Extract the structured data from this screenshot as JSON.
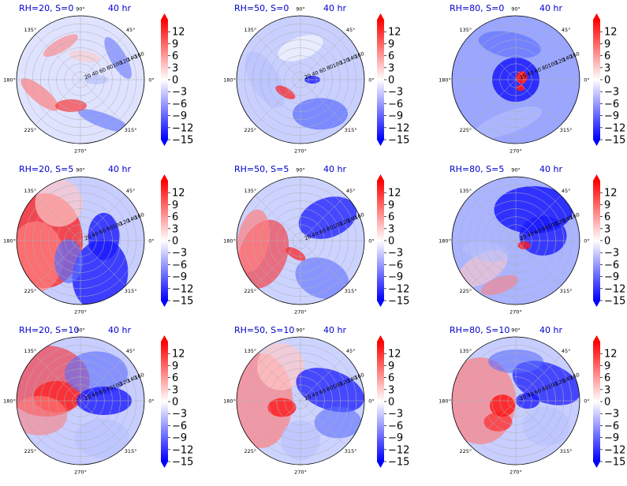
{
  "figure": {
    "time_label": "40 hr",
    "angle_tick_labels": [
      "0°",
      "45°",
      "90°",
      "135°",
      "180°",
      "225°",
      "270°",
      "315°"
    ],
    "radial_tick_labels": [
      "20",
      "40",
      "60",
      "80",
      "100",
      "120",
      "140",
      "160"
    ],
    "colorbar": {
      "tick_labels": [
        "12",
        "9",
        "6",
        "3",
        "0",
        "−3",
        "−6",
        "−9",
        "−12",
        "−15"
      ],
      "range": [
        -15,
        15
      ],
      "colormap": {
        "low": "#0000ff",
        "mid": "#ffffff",
        "high": "#ff0000"
      }
    },
    "title_color": "#0000cc"
  },
  "chart_data": [
    {
      "type": "heatmap",
      "projection": "polar",
      "title": "RH=20, S=0",
      "time": "40 hr",
      "rlim": [
        0,
        160
      ],
      "clim": [
        -15,
        15
      ]
    },
    {
      "type": "heatmap",
      "projection": "polar",
      "title": "RH=50, S=0",
      "time": "40 hr",
      "rlim": [
        0,
        160
      ],
      "clim": [
        -15,
        15
      ]
    },
    {
      "type": "heatmap",
      "projection": "polar",
      "title": "RH=80, S=0",
      "time": "40 hr",
      "rlim": [
        0,
        160
      ],
      "clim": [
        -15,
        15
      ]
    },
    {
      "type": "heatmap",
      "projection": "polar",
      "title": "RH=20, S=5",
      "time": "40 hr",
      "rlim": [
        0,
        160
      ],
      "clim": [
        -15,
        15
      ]
    },
    {
      "type": "heatmap",
      "projection": "polar",
      "title": "RH=50, S=5",
      "time": "40 hr",
      "rlim": [
        0,
        160
      ],
      "clim": [
        -15,
        15
      ]
    },
    {
      "type": "heatmap",
      "projection": "polar",
      "title": "RH=80, S=5",
      "time": "40 hr",
      "rlim": [
        0,
        160
      ],
      "clim": [
        -15,
        15
      ]
    },
    {
      "type": "heatmap",
      "projection": "polar",
      "title": "RH=20, S=10",
      "time": "40 hr",
      "rlim": [
        0,
        160
      ],
      "clim": [
        -15,
        15
      ]
    },
    {
      "type": "heatmap",
      "projection": "polar",
      "title": "RH=50, S=10",
      "time": "40 hr",
      "rlim": [
        0,
        160
      ],
      "clim": [
        -15,
        15
      ]
    },
    {
      "type": "heatmap",
      "projection": "polar",
      "title": "RH=80, S=10",
      "time": "40 hr",
      "rlim": [
        0,
        160
      ],
      "clim": [
        -15,
        15
      ]
    }
  ]
}
